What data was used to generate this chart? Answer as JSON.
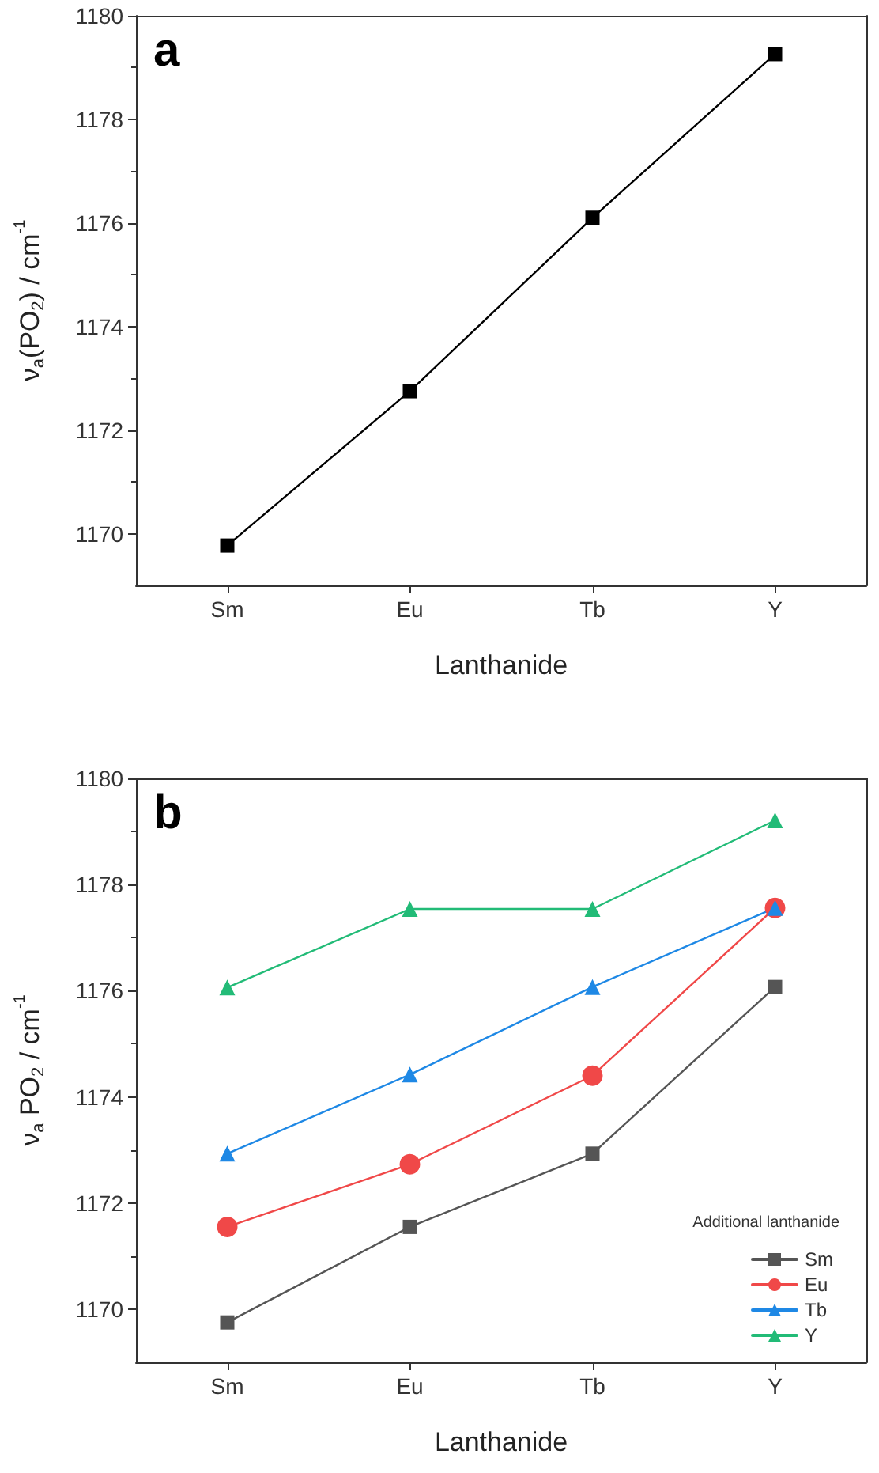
{
  "chart_data": [
    {
      "type": "line",
      "title": "a",
      "xlabel": "Lanthanide",
      "ylabel": "ν$_{a}$(PO$_{2}$) / cm$^{-1}$",
      "categories": [
        "Sm",
        "Eu",
        "Tb",
        "Y"
      ],
      "series": [
        {
          "color": "#000000",
          "marker": "square",
          "values": [
            1169.77,
            1172.75,
            1176.1,
            1179.26
          ]
        }
      ],
      "ylim": [
        1169,
        1180
      ],
      "yticks": [
        1170,
        1172,
        1174,
        1176,
        1178,
        1180
      ],
      "grid": false,
      "legend": false
    },
    {
      "type": "line",
      "title": "b",
      "xlabel": "Lanthanide",
      "ylabel": "ν$_{a}$ PO$_{2}$ / cm$^{-1}$",
      "legend_title": "Additional lanthanide",
      "categories": [
        "Sm",
        "Eu",
        "Tb",
        "Y"
      ],
      "series": [
        {
          "name": "Sm",
          "color": "#555555",
          "marker": "square",
          "values": [
            1169.75,
            1171.55,
            1172.93,
            1176.07
          ]
        },
        {
          "name": "Eu",
          "color": "#f04848",
          "marker": "circle",
          "values": [
            1171.55,
            1172.73,
            1174.4,
            1177.56
          ]
        },
        {
          "name": "Tb",
          "color": "#1e88e5",
          "marker": "triangle",
          "values": [
            1172.93,
            1174.42,
            1176.07,
            1177.56
          ]
        },
        {
          "name": "Y",
          "color": "#22bb77",
          "marker": "triangle",
          "values": [
            1176.06,
            1177.54,
            1177.54,
            1179.21
          ]
        }
      ],
      "ylim": [
        1169,
        1180
      ],
      "yticks": [
        1170,
        1172,
        1174,
        1176,
        1178,
        1180
      ],
      "grid": false,
      "legend": "bottom right"
    }
  ]
}
